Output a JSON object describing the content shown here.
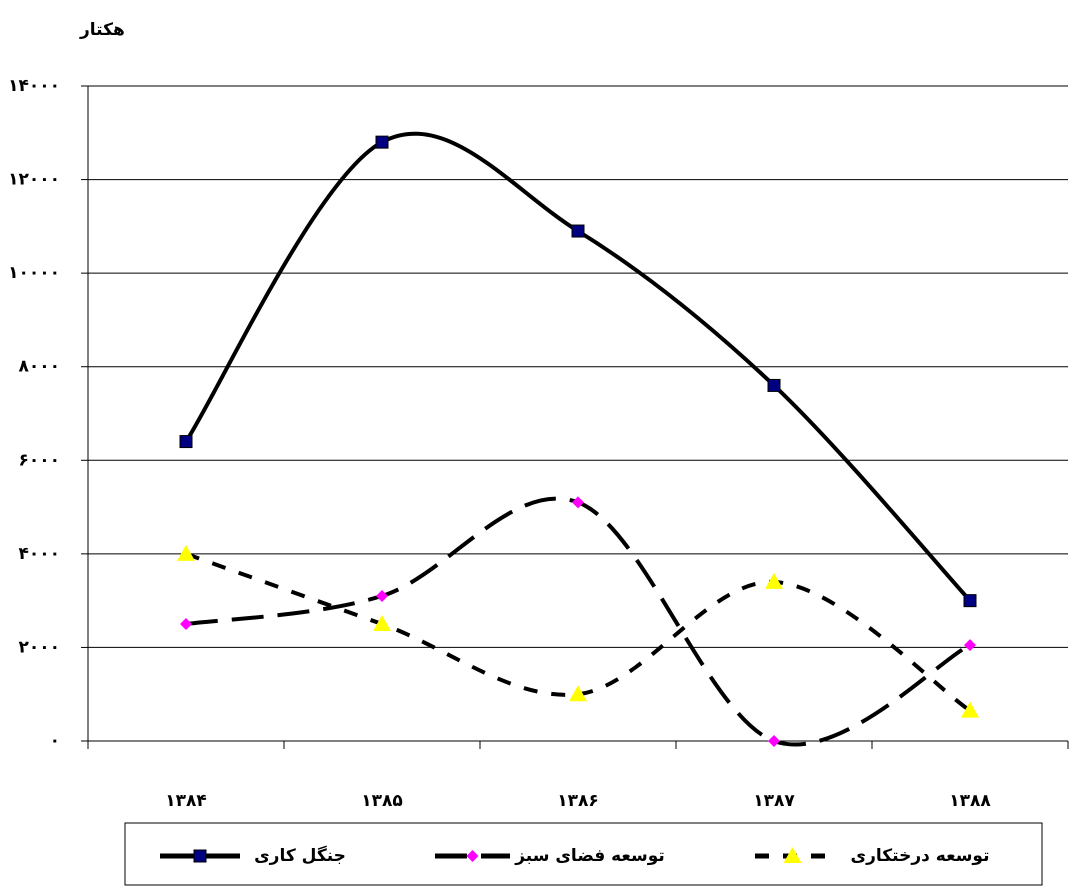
{
  "chart_data": {
    "type": "line",
    "y_axis_label": "هکتار",
    "categories": [
      "۱۳۸۴",
      "۱۳۸۵",
      "۱۳۸۶",
      "۱۳۸۷",
      "۱۳۸۸"
    ],
    "series": [
      {
        "name": "جنگل کاری",
        "color": "#000080",
        "marker": "square",
        "line_style": "solid",
        "values": [
          6400,
          12800,
          10900,
          7600,
          3000
        ]
      },
      {
        "name": "توسعه فضای سبز",
        "color": "#ff00ff",
        "marker": "diamond",
        "line_style": "long-dash",
        "values": [
          2500,
          3100,
          5100,
          0,
          2050
        ]
      },
      {
        "name": "توسعه درختکاری",
        "color": "#ffff00",
        "marker": "triangle",
        "line_style": "short-dash",
        "values": [
          4000,
          2500,
          1000,
          3400,
          650
        ]
      }
    ],
    "ylim": [
      0,
      14000
    ],
    "yticks": [
      {
        "value": 0,
        "label": "۰"
      },
      {
        "value": 2000,
        "label": "۲۰۰۰"
      },
      {
        "value": 4000,
        "label": "۴۰۰۰"
      },
      {
        "value": 6000,
        "label": "۶۰۰۰"
      },
      {
        "value": 8000,
        "label": "۸۰۰۰"
      },
      {
        "value": 10000,
        "label": "۱۰۰۰۰"
      },
      {
        "value": 12000,
        "label": "۱۲۰۰۰"
      },
      {
        "value": 14000,
        "label": "۱۴۰۰۰"
      }
    ],
    "grid": true,
    "legend": "bottom"
  }
}
